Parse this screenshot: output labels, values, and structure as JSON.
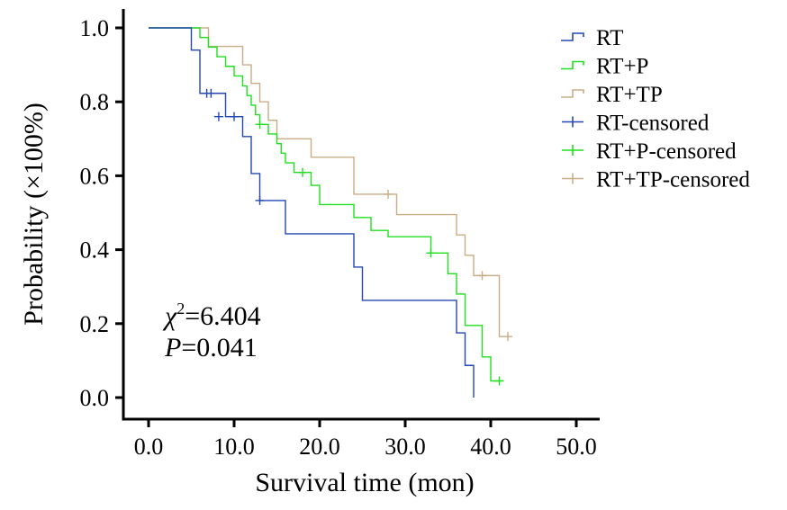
{
  "chart_data": {
    "type": "line",
    "subtype": "kaplan-meier-step",
    "xlabel": "Survival time (mon)",
    "ylabel": "Probability (×100%)",
    "xlim": [
      0,
      50
    ],
    "ylim": [
      0,
      1
    ],
    "x_ticks": [
      0,
      10,
      20,
      30,
      40,
      50
    ],
    "x_tick_labels": [
      "0.0",
      "10.0",
      "20.0",
      "30.0",
      "40.0",
      "50.0"
    ],
    "y_ticks": [
      0,
      0.2,
      0.4,
      0.6,
      0.8,
      1.0
    ],
    "y_tick_labels": [
      "0.0",
      "0.2",
      "0.4",
      "0.6",
      "0.8",
      "1.0"
    ],
    "legend_position": "top-right",
    "series": [
      {
        "name": "RT",
        "color": "#2347b5",
        "steps": [
          [
            0,
            1.0
          ],
          [
            5,
            0.94
          ],
          [
            6,
            0.823
          ],
          [
            9,
            0.76
          ],
          [
            11,
            0.706
          ],
          [
            12,
            0.606
          ],
          [
            13,
            0.533
          ],
          [
            16,
            0.443
          ],
          [
            24,
            0.353
          ],
          [
            25,
            0.263
          ],
          [
            36,
            0.175
          ],
          [
            37,
            0.087
          ],
          [
            38,
            0.0
          ]
        ],
        "end_x": 38,
        "censored": [
          [
            6.8,
            0.823
          ],
          [
            7.3,
            0.823
          ],
          [
            8.2,
            0.76
          ],
          [
            10,
            0.76
          ],
          [
            13,
            0.533
          ]
        ]
      },
      {
        "name": "RT+P",
        "color": "#1ee01e",
        "steps": [
          [
            0,
            1.0
          ],
          [
            6,
            0.974
          ],
          [
            7,
            0.948
          ],
          [
            8,
            0.922
          ],
          [
            9,
            0.896
          ],
          [
            10,
            0.87
          ],
          [
            11,
            0.843
          ],
          [
            11.5,
            0.817
          ],
          [
            12,
            0.791
          ],
          [
            12.5,
            0.765
          ],
          [
            13,
            0.739
          ],
          [
            14,
            0.713
          ],
          [
            15,
            0.687
          ],
          [
            15.5,
            0.661
          ],
          [
            16,
            0.635
          ],
          [
            17,
            0.609
          ],
          [
            19,
            0.574
          ],
          [
            20,
            0.522
          ],
          [
            24,
            0.487
          ],
          [
            26,
            0.452
          ],
          [
            28,
            0.435
          ],
          [
            33,
            0.391
          ],
          [
            35,
            0.335
          ],
          [
            36,
            0.28
          ],
          [
            37,
            0.195
          ],
          [
            39,
            0.11
          ],
          [
            40,
            0.045
          ]
        ],
        "end_x": 41,
        "censored": [
          [
            13,
            0.739
          ],
          [
            18,
            0.609
          ],
          [
            33,
            0.391
          ],
          [
            41,
            0.045
          ]
        ]
      },
      {
        "name": "RT+TP",
        "color": "#c9ad86",
        "steps": [
          [
            0,
            1.0
          ],
          [
            7,
            0.95
          ],
          [
            11,
            0.9
          ],
          [
            12,
            0.85
          ],
          [
            13,
            0.8
          ],
          [
            14,
            0.75
          ],
          [
            15,
            0.7
          ],
          [
            19,
            0.65
          ],
          [
            24,
            0.55
          ],
          [
            29,
            0.495
          ],
          [
            36,
            0.44
          ],
          [
            37,
            0.385
          ],
          [
            38,
            0.33
          ],
          [
            41,
            0.165
          ]
        ],
        "end_x": 42,
        "censored": [
          [
            28,
            0.55
          ],
          [
            39,
            0.33
          ],
          [
            42,
            0.165
          ]
        ]
      }
    ],
    "legend": [
      "RT",
      "RT+P",
      "RT+TP",
      "RT-censored",
      "RT+P-censored",
      "RT+TP-censored"
    ],
    "annotations": {
      "chi_symbol": "χ",
      "chi_sup": "2",
      "chi_value": "=6.404",
      "p_symbol": "P",
      "p_value": "=0.041"
    }
  }
}
